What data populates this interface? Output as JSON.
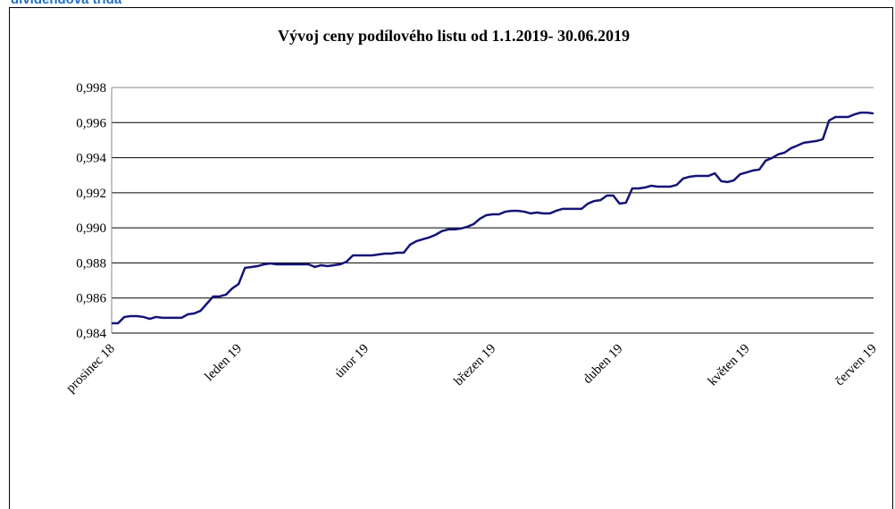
{
  "header": {
    "title": "dividendová třída"
  },
  "chart_data": {
    "type": "line",
    "title": "Vývoj ceny podílového listu od 1.1.2019- 30.06.2019",
    "categories": [
      "prosinec 18",
      null,
      null,
      null,
      null,
      null,
      null,
      null,
      null,
      null,
      null,
      null,
      null,
      null,
      null,
      null,
      null,
      null,
      null,
      null,
      "leden 19",
      null,
      null,
      null,
      null,
      null,
      null,
      null,
      null,
      null,
      null,
      null,
      null,
      null,
      null,
      null,
      null,
      null,
      null,
      null,
      "únor 19",
      null,
      null,
      null,
      null,
      null,
      null,
      null,
      null,
      null,
      null,
      null,
      null,
      null,
      null,
      null,
      null,
      null,
      null,
      null,
      "březen 19",
      null,
      null,
      null,
      null,
      null,
      null,
      null,
      null,
      null,
      null,
      null,
      null,
      null,
      null,
      null,
      null,
      null,
      null,
      null,
      "duben 19",
      null,
      null,
      null,
      null,
      null,
      null,
      null,
      null,
      null,
      null,
      null,
      null,
      null,
      null,
      null,
      null,
      null,
      null,
      null,
      "květen 19",
      null,
      null,
      null,
      null,
      null,
      null,
      null,
      null,
      null,
      null,
      null,
      null,
      null,
      null,
      null,
      null,
      null,
      null,
      null,
      "červen 19"
    ],
    "values": [
      0.98456,
      0.98456,
      0.98492,
      0.98497,
      0.98497,
      0.98492,
      0.98481,
      0.98492,
      0.98487,
      0.98487,
      0.98487,
      0.98487,
      0.98507,
      0.98512,
      0.98527,
      0.98568,
      0.98609,
      0.98609,
      0.98619,
      0.98655,
      0.9868,
      0.98772,
      0.98777,
      0.98782,
      0.98792,
      0.98797,
      0.98792,
      0.98792,
      0.98792,
      0.98792,
      0.98792,
      0.98792,
      0.98777,
      0.98787,
      0.98782,
      0.98787,
      0.98792,
      0.98807,
      0.98843,
      0.98843,
      0.98843,
      0.98843,
      0.98848,
      0.98853,
      0.98853,
      0.98858,
      0.98858,
      0.98904,
      0.98924,
      0.98935,
      0.98945,
      0.9896,
      0.98981,
      0.98991,
      0.98991,
      0.98996,
      0.99006,
      0.99021,
      0.99052,
      0.99072,
      0.99077,
      0.99077,
      0.99092,
      0.99097,
      0.99097,
      0.99092,
      0.99082,
      0.99087,
      0.99082,
      0.99082,
      0.99097,
      0.99108,
      0.99108,
      0.99108,
      0.99108,
      0.99138,
      0.99153,
      0.99158,
      0.99184,
      0.99184,
      0.99138,
      0.99143,
      0.99225,
      0.99225,
      0.9923,
      0.9924,
      0.99235,
      0.99235,
      0.99235,
      0.99245,
      0.99281,
      0.99291,
      0.99296,
      0.99296,
      0.99296,
      0.99311,
      0.99266,
      0.99261,
      0.99271,
      0.99306,
      0.99316,
      0.99327,
      0.99332,
      0.99383,
      0.99398,
      0.99419,
      0.99429,
      0.99454,
      0.99469,
      0.99485,
      0.9949,
      0.99495,
      0.99505,
      0.99612,
      0.99632,
      0.99632,
      0.99632,
      0.99647,
      0.99657,
      0.99657,
      0.99652
    ],
    "color": "#141478",
    "ylim": [
      0.984,
      0.998
    ],
    "yticks": [
      {
        "value": 0.984,
        "label": "0,984"
      },
      {
        "value": 0.986,
        "label": "0,986"
      },
      {
        "value": 0.988,
        "label": "0,988"
      },
      {
        "value": 0.99,
        "label": "0,990"
      },
      {
        "value": 0.992,
        "label": "0,992"
      },
      {
        "value": 0.994,
        "label": "0,994"
      },
      {
        "value": 0.996,
        "label": "0,996"
      },
      {
        "value": 0.998,
        "label": "0,998"
      }
    ],
    "grid": true
  }
}
